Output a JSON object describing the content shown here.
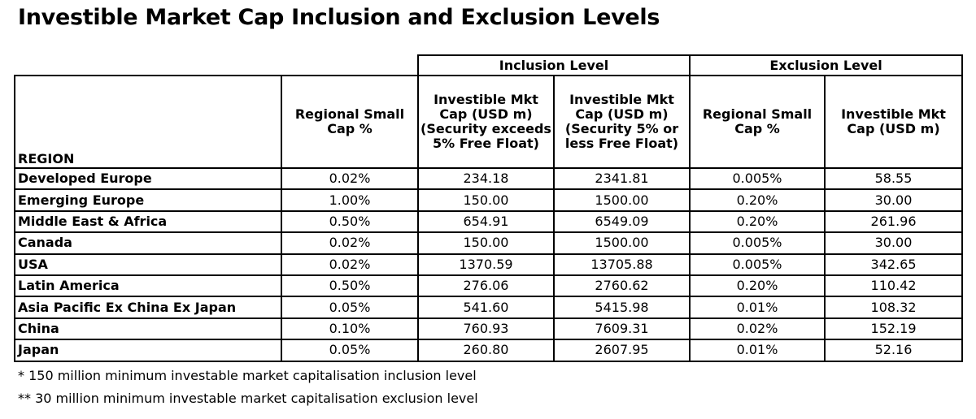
{
  "title": "Investible Market Cap Inclusion and Exclusion Levels",
  "groups": {
    "inclusion": "Inclusion Level",
    "exclusion": "Exclusion Level"
  },
  "columns": {
    "region": "REGION",
    "regional_small_cap": [
      "Regional Small",
      "Cap %"
    ],
    "incl_mkt_cap_exceeds": [
      "Investible Mkt",
      "Cap (USD m)",
      "(Security exceeds",
      "5% Free Float)"
    ],
    "incl_mkt_cap_less": [
      "Investible Mkt",
      "Cap (USD m)",
      "(Security 5% or",
      "less Free Float)"
    ],
    "excl_regional_small_cap": [
      "Regional Small",
      "Cap %"
    ],
    "excl_mkt_cap": [
      "Investible Mkt",
      "Cap (USD m)"
    ]
  },
  "rows": [
    [
      "Developed Europe",
      "0.02%",
      "234.18",
      "2341.81",
      "0.005%",
      "58.55"
    ],
    [
      "Emerging Europe",
      "1.00%",
      "150.00",
      "1500.00",
      "0.20%",
      "30.00"
    ],
    [
      "Middle East & Africa",
      "0.50%",
      "654.91",
      "6549.09",
      "0.20%",
      "261.96"
    ],
    [
      "Canada",
      "0.02%",
      "150.00",
      "1500.00",
      "0.005%",
      "30.00"
    ],
    [
      "USA",
      "0.02%",
      "1370.59",
      "13705.88",
      "0.005%",
      "342.65"
    ],
    [
      "Latin America",
      "0.50%",
      "276.06",
      "2760.62",
      "0.20%",
      "110.42"
    ],
    [
      "Asia Pacific Ex China Ex Japan",
      "0.05%",
      "541.60",
      "5415.98",
      "0.01%",
      "108.32"
    ],
    [
      "China",
      "0.10%",
      "760.93",
      "7609.31",
      "0.02%",
      "152.19"
    ],
    [
      "Japan",
      "0.05%",
      "260.80",
      "2607.95",
      "0.01%",
      "52.16"
    ]
  ],
  "notes": [
    "* 150 million minimum investable market capitalisation inclusion level",
    "** 30 million minimum investable market capitalisation exclusion level"
  ]
}
